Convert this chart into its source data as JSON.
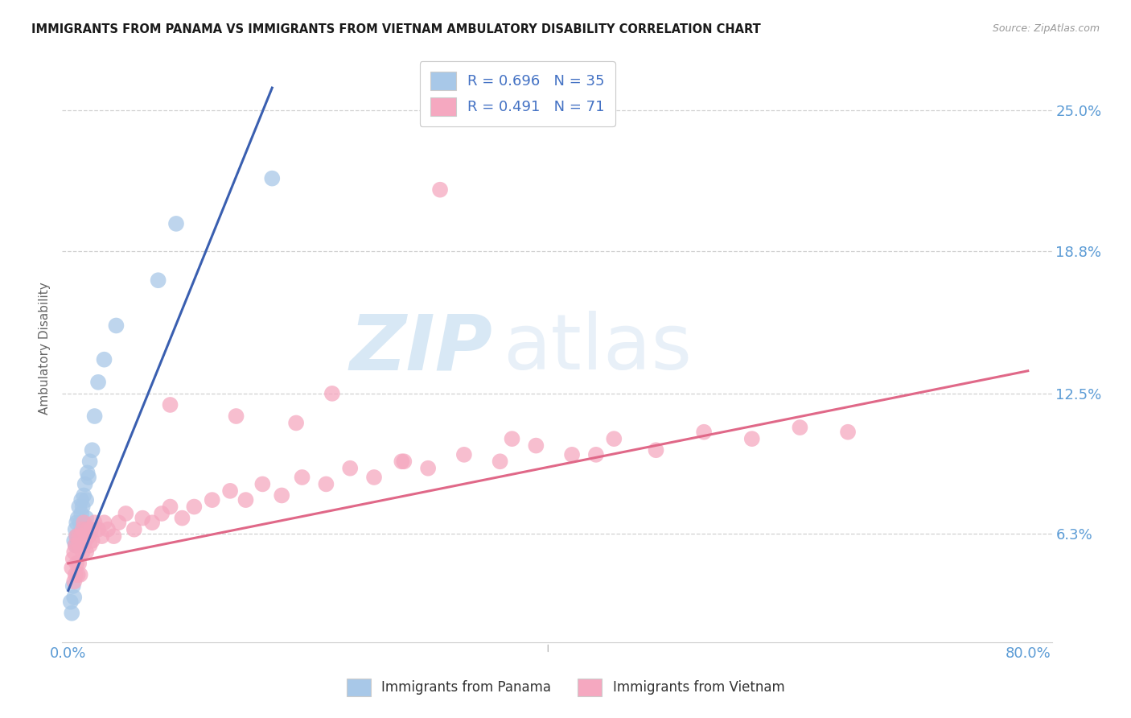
{
  "title": "IMMIGRANTS FROM PANAMA VS IMMIGRANTS FROM VIETNAM AMBULATORY DISABILITY CORRELATION CHART",
  "source": "Source: ZipAtlas.com",
  "ylabel": "Ambulatory Disability",
  "y_tick_values": [
    0.063,
    0.125,
    0.188,
    0.25
  ],
  "y_tick_labels": [
    "6.3%",
    "12.5%",
    "18.8%",
    "25.0%"
  ],
  "x_tick_values": [
    0.0,
    0.8
  ],
  "x_tick_labels": [
    "0.0%",
    "80.0%"
  ],
  "xlim": [
    -0.005,
    0.82
  ],
  "ylim": [
    0.015,
    0.275
  ],
  "color_panama": "#a8c8e8",
  "color_vietnam": "#f5a8c0",
  "line_color_panama": "#3a5fb0",
  "line_color_vietnam": "#e06888",
  "background_color": "#ffffff",
  "title_color": "#1a1a1a",
  "axis_label_color": "#5b9bd5",
  "grid_color": "#d0d0d0",
  "panama_x": [
    0.002,
    0.003,
    0.004,
    0.005,
    0.005,
    0.006,
    0.006,
    0.007,
    0.007,
    0.008,
    0.008,
    0.009,
    0.009,
    0.01,
    0.01,
    0.011,
    0.011,
    0.012,
    0.012,
    0.013,
    0.013,
    0.014,
    0.015,
    0.015,
    0.016,
    0.017,
    0.018,
    0.02,
    0.022,
    0.025,
    0.03,
    0.04,
    0.075,
    0.09,
    0.17
  ],
  "panama_y": [
    0.033,
    0.028,
    0.04,
    0.035,
    0.06,
    0.058,
    0.065,
    0.062,
    0.068,
    0.06,
    0.07,
    0.063,
    0.075,
    0.06,
    0.068,
    0.072,
    0.078,
    0.065,
    0.075,
    0.068,
    0.08,
    0.085,
    0.07,
    0.078,
    0.09,
    0.088,
    0.095,
    0.1,
    0.115,
    0.13,
    0.14,
    0.155,
    0.175,
    0.2,
    0.22
  ],
  "vietnam_x": [
    0.003,
    0.004,
    0.005,
    0.005,
    0.006,
    0.006,
    0.007,
    0.007,
    0.008,
    0.008,
    0.009,
    0.009,
    0.01,
    0.01,
    0.011,
    0.012,
    0.012,
    0.013,
    0.013,
    0.014,
    0.015,
    0.015,
    0.016,
    0.017,
    0.018,
    0.019,
    0.02,
    0.022,
    0.025,
    0.028,
    0.03,
    0.033,
    0.038,
    0.042,
    0.048,
    0.055,
    0.062,
    0.07,
    0.078,
    0.085,
    0.095,
    0.105,
    0.12,
    0.135,
    0.148,
    0.162,
    0.178,
    0.195,
    0.215,
    0.235,
    0.255,
    0.278,
    0.3,
    0.33,
    0.36,
    0.39,
    0.42,
    0.455,
    0.49,
    0.53,
    0.57,
    0.61,
    0.65,
    0.19,
    0.28,
    0.37,
    0.44,
    0.085,
    0.14,
    0.22,
    0.31
  ],
  "vietnam_y": [
    0.048,
    0.052,
    0.055,
    0.042,
    0.058,
    0.045,
    0.062,
    0.05,
    0.058,
    0.045,
    0.062,
    0.05,
    0.058,
    0.045,
    0.062,
    0.055,
    0.065,
    0.058,
    0.068,
    0.06,
    0.062,
    0.055,
    0.065,
    0.062,
    0.058,
    0.065,
    0.06,
    0.068,
    0.065,
    0.062,
    0.068,
    0.065,
    0.062,
    0.068,
    0.072,
    0.065,
    0.07,
    0.068,
    0.072,
    0.075,
    0.07,
    0.075,
    0.078,
    0.082,
    0.078,
    0.085,
    0.08,
    0.088,
    0.085,
    0.092,
    0.088,
    0.095,
    0.092,
    0.098,
    0.095,
    0.102,
    0.098,
    0.105,
    0.1,
    0.108,
    0.105,
    0.11,
    0.108,
    0.112,
    0.095,
    0.105,
    0.098,
    0.12,
    0.115,
    0.125,
    0.215
  ],
  "panama_line_x0": 0.0,
  "panama_line_x1": 0.17,
  "vietnam_line_x0": 0.0,
  "vietnam_line_x1": 0.8,
  "panama_line_y0": 0.038,
  "panama_line_y1": 0.26,
  "vietnam_line_y0": 0.05,
  "vietnam_line_y1": 0.135
}
